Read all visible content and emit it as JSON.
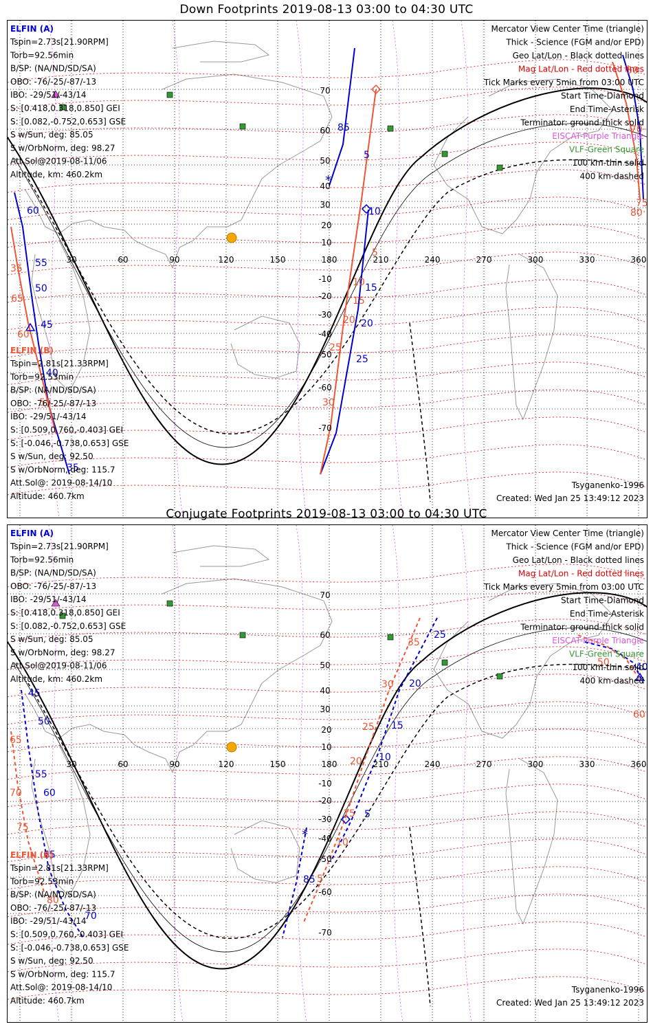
{
  "colors": {
    "elfin_a": "#0000cc",
    "elfin_b": "#ee5533",
    "geo_grid": "#000000",
    "mag_grid": "#dd0000",
    "eiscat": "#dd55dd",
    "vlf": "#339933",
    "sun": "#f5a800",
    "land": "#999999"
  },
  "panels": [
    {
      "title": "Down Footprints 2019-08-13 03:00 to 04:30 UTC",
      "left_a": {
        "name": "ELFIN (A)",
        "lines": [
          "Tspin=2.73s[21.90RPM]",
          "Torb=92.56min",
          "B/SP: (NA/ND/SD/SA)",
          "OBO: -76/-25/-87/-13",
          "IBO: -29/51/-43/14",
          "S: [0.418,0.318,0.850] GEI",
          "S: [0.082,-0.752,0.653] GSE",
          "S w/Sun, deg: 85.05",
          "S w/OrbNorm, deg: 98.27",
          "Att.Sol@2019-08-11/06",
          "Altitude, km: 460.2km"
        ]
      },
      "left_b": {
        "name": "ELFIN (B)",
        "lines": [
          "Tspin=2.81s[21.33RPM]",
          "Torb=92.53min",
          "B/SP: (NA/ND/SD/SA)",
          "OBO: -76/-25/-87/-13",
          "IBO: -29/51/-43/14",
          "S: [0.509,0.760,-0.403] GEI",
          "S: [-0.046,-0.738,0.653] GSE",
          "S w/Sun, deg: 92.50",
          "S w/OrbNorm, deg: 115.7",
          "Att.Sol@: 2019-08-14/10",
          "Altitude: 460.7km"
        ]
      },
      "legend": [
        "Mercator View Center Time (triangle)",
        "Thick - Science (FGM and/or EPD)",
        "Geo Lat/Lon - Black dotted lines",
        "Mag Lat/Lon - Red dotted lines",
        "Tick Marks every 5min from 03:00 UTC",
        "Start Time-Diamond",
        "End Time-Asterisk",
        "Terminator: ground-thick solid",
        "EISCAT-Purple Triangle",
        "VLF-Green Square",
        "100 km-thin solid",
        "400 km-dashed"
      ],
      "model": "Tsyganenko-1996",
      "created": "Created: Wed Jan 25 13:49:12 2023",
      "lon_ticks": [
        "30",
        "60",
        "90",
        "120",
        "150",
        "180",
        "210",
        "240",
        "270",
        "300",
        "330",
        "360"
      ],
      "lat_ticks": [
        "70",
        "60",
        "50",
        "40",
        "30",
        "20",
        "10",
        "-10",
        "-20",
        "-30",
        "-40",
        "-50",
        "-60",
        "-70"
      ],
      "track_a_labels": [
        "85",
        "5",
        "10",
        "15",
        "20",
        "25",
        "60",
        "55",
        "50",
        "45",
        "40",
        "35"
      ],
      "track_b_labels": [
        "5",
        "10",
        "15",
        "20",
        "25",
        "30",
        "35",
        "65",
        "60",
        "55",
        "50",
        "70",
        "75",
        "80"
      ]
    },
    {
      "title": "Conjugate Footprints 2019-08-13 03:00 to 04:30 UTC",
      "left_a": {
        "name": "ELFIN (A)",
        "lines": [
          "Tspin=2.73s[21.90RPM]",
          "Torb=92.56min",
          "B/SP: (NA/ND/SD/SA)",
          "OBO: -76/-25/-87/-13",
          "IBO: -29/51/-43/14",
          "S: [0.418,0.318,0.850] GEI",
          "S: [0.082,-0.752,0.653] GSE",
          "S w/Sun, deg: 85.05",
          "S w/OrbNorm, deg: 98.27",
          "Att.Sol@2019-08-11/06",
          "Altitude, km: 460.2km"
        ]
      },
      "left_b": {
        "name": "ELFIN (B)",
        "lines": [
          "Tspin=2.81s[21.33RPM]",
          "Torb=92.53min",
          "B/SP: (NA/ND/SD/SA)",
          "OBO: -76/-25/-87/-13",
          "IBO: -29/51/-43/14",
          "S: [0.509,0.760,-0.403] GEI",
          "S: [-0.046,-0.738,0.653] GSE",
          "S w/Sun, deg: 92.50",
          "S w/OrbNorm, deg: 115.7",
          "Att.Sol@: 2019-08-14/10",
          "Altitude: 460.7km"
        ]
      },
      "legend": [
        "Mercator View Center Time (triangle)",
        "Thick - Science (FGM and/or EPD)",
        "Geo Lat/Lon - Black dotted lines",
        "Mag Lat/Lon - Red dotted lines",
        "Tick Marks every 5min from 03:00 UTC",
        "Start Time-Diamond",
        "End Time-Asterisk",
        "Terminator: ground-thick solid",
        "EISCAT-Purple Triangle",
        "VLF-Green Square",
        "100 km-thin solid",
        "400 km-dashed"
      ],
      "model": "Tsyganenko-1996",
      "created": "Created: Wed Jan 25 13:49:12 2023",
      "lon_ticks": [
        "30",
        "60",
        "90",
        "120",
        "150",
        "180",
        "210",
        "240",
        "270",
        "300",
        "330",
        "360"
      ],
      "lat_ticks": [
        "70",
        "60",
        "50",
        "40",
        "30",
        "20",
        "10",
        "-10",
        "-20",
        "-30",
        "-40",
        "-50",
        "-60",
        "-70"
      ],
      "track_a_labels": [
        "25",
        "20",
        "15",
        "10",
        "5",
        "85",
        "45",
        "50",
        "55",
        "60",
        "65",
        "70",
        "40"
      ],
      "track_b_labels": [
        "35",
        "30",
        "25",
        "20",
        "15",
        "10",
        "5",
        "65",
        "70",
        "75",
        "80",
        "50",
        "60"
      ]
    }
  ]
}
